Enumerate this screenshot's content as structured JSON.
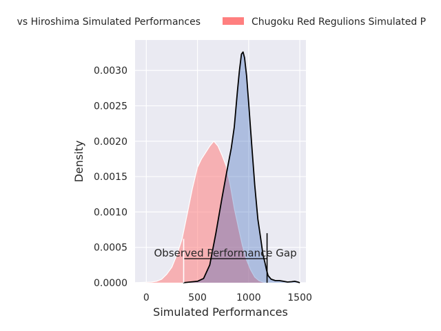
{
  "chart_data": {
    "type": "area",
    "title": "",
    "xlabel": "Simulated Performances",
    "ylabel": "Density",
    "xlim": [
      -110,
      1560
    ],
    "ylim": [
      0,
      0.00343
    ],
    "xticks": [
      0,
      500,
      1000,
      1500
    ],
    "xtick_labels": [
      "0",
      "500",
      "1000",
      "1500"
    ],
    "yticks": [
      0,
      0.0005,
      0.001,
      0.0015,
      0.002,
      0.0025,
      0.003
    ],
    "ytick_labels": [
      "0.0000",
      "0.0005",
      "0.0010",
      "0.0015",
      "0.0020",
      "0.0025",
      "0.0030"
    ],
    "grid": true,
    "legend_position": "top, outside plot",
    "series": [
      {
        "name": "Fukuoka vs Hiroshima Simulated Performances",
        "legend_label_visible": "vs Hiroshima Simulated Performances",
        "color": "#2b5cb8",
        "outline_color": "#000000",
        "points": [
          [
            360,
            0
          ],
          [
            500,
            2e-05
          ],
          [
            560,
            6e-05
          ],
          [
            620,
            0.00025
          ],
          [
            680,
            0.0007
          ],
          [
            740,
            0.0012
          ],
          [
            790,
            0.0016
          ],
          [
            830,
            0.0019
          ],
          [
            860,
            0.0022
          ],
          [
            890,
            0.0027
          ],
          [
            910,
            0.003
          ],
          [
            930,
            0.00323
          ],
          [
            945,
            0.00326
          ],
          [
            960,
            0.00318
          ],
          [
            980,
            0.00292
          ],
          [
            1000,
            0.00255
          ],
          [
            1030,
            0.00195
          ],
          [
            1060,
            0.00138
          ],
          [
            1090,
            0.0009
          ],
          [
            1120,
            0.0006
          ],
          [
            1140,
            0.0004
          ],
          [
            1160,
            0.00028
          ],
          [
            1175,
            0.00018
          ],
          [
            1190,
            0.0001
          ],
          [
            1220,
            5e-05
          ],
          [
            1260,
            3e-05
          ],
          [
            1300,
            3e-05
          ],
          [
            1340,
            2e-05
          ],
          [
            1380,
            1e-05
          ],
          [
            1420,
            1.5e-05
          ],
          [
            1450,
            2e-05
          ],
          [
            1480,
            1e-05
          ],
          [
            1500,
            0
          ]
        ]
      },
      {
        "name": "Chugoku Red Regulions Simulated P",
        "color": "#ff7f7f",
        "outline_color": "#ffffff",
        "points": [
          [
            -120,
            0
          ],
          [
            50,
            1e-05
          ],
          [
            100,
            2e-05
          ],
          [
            150,
            5e-05
          ],
          [
            200,
            0.00012
          ],
          [
            250,
            0.00022
          ],
          [
            300,
            0.0004
          ],
          [
            350,
            0.00062
          ],
          [
            400,
            0.00097
          ],
          [
            450,
            0.00133
          ],
          [
            500,
            0.00163
          ],
          [
            540,
            0.00175
          ],
          [
            580,
            0.00184
          ],
          [
            620,
            0.00193
          ],
          [
            660,
            0.002
          ],
          [
            700,
            0.00193
          ],
          [
            740,
            0.0018
          ],
          [
            780,
            0.00165
          ],
          [
            820,
            0.00138
          ],
          [
            860,
            0.00105
          ],
          [
            900,
            0.00078
          ],
          [
            940,
            0.00052
          ],
          [
            980,
            0.00032
          ],
          [
            1020,
            0.00018
          ],
          [
            1060,
            8e-05
          ],
          [
            1100,
            3e-05
          ],
          [
            1140,
            1e-05
          ],
          [
            1180,
            0
          ]
        ]
      }
    ],
    "annotations": [
      {
        "text": "Observed Performance Gap",
        "x_start": 365,
        "x_end": 1180,
        "y": 0.00034,
        "start_tick_top": 0.00062,
        "end_tick_top": 0.0007
      }
    ]
  }
}
